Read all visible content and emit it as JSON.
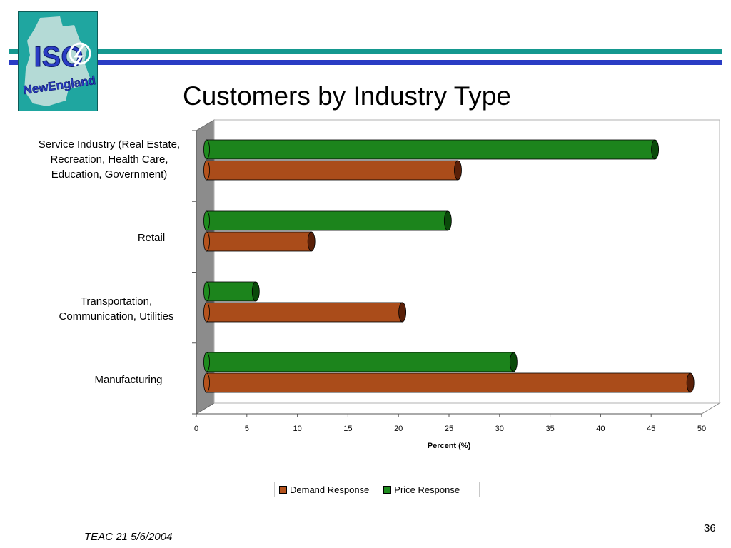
{
  "slide": {
    "title": "Customers by Industry Type",
    "footer": "TEAC 21 5/6/2004",
    "page_number": "36",
    "logo_text": [
      "ISO",
      "NewEngland"
    ]
  },
  "colors": {
    "demand": "#b5531d",
    "demand_dark": "#5a2008",
    "price": "#1e8c1e",
    "price_dark": "#0a4a0a",
    "teal_rule": "#14988f",
    "blue_rule": "#2a3cc4"
  },
  "chart_data": {
    "type": "bar",
    "orientation": "horizontal",
    "style": "3d-cylinder",
    "categories": [
      "Service Industry (Real Estate, Recreation, Health Care, Education, Government)",
      "Retail",
      "Transportation, Communication, Utilities",
      "Manufacturing"
    ],
    "series": [
      {
        "name": "Price Response",
        "color": "#1e8c1e",
        "values": [
          44.5,
          24,
          5,
          30.5
        ]
      },
      {
        "name": "Demand Response",
        "color": "#b5531d",
        "values": [
          25,
          10.5,
          19.5,
          48
        ]
      }
    ],
    "xlabel": "Percent (%)",
    "xlim": [
      0,
      50
    ],
    "xticks": [
      "0",
      "5",
      "10",
      "15",
      "20",
      "25",
      "30",
      "35",
      "40",
      "45",
      "50"
    ],
    "legend": [
      {
        "label": "Demand Response",
        "color": "#b5531d"
      },
      {
        "label": "Price Response",
        "color": "#1e8c1e"
      }
    ],
    "legend_position": "bottom",
    "grid": false
  }
}
